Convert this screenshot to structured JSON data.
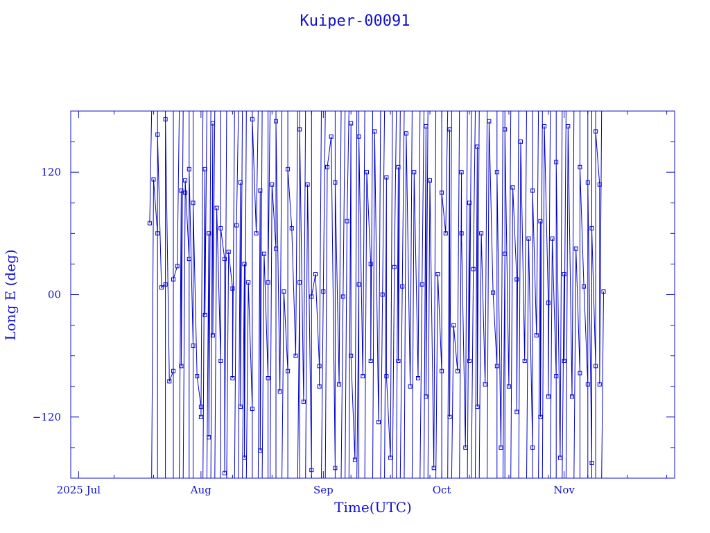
{
  "chart_data": {
    "type": "line",
    "title": "Kuiper-00091",
    "xlabel": "Time(UTC)",
    "ylabel": "Long E (deg)",
    "x_ticks": [
      {
        "label": "2025 Jul",
        "day": "2025-07-01"
      },
      {
        "label": "Aug",
        "day": "2025-08-01"
      },
      {
        "label": "Sep",
        "day": "2025-09-01"
      },
      {
        "label": "Oct",
        "day": "2025-10-01"
      },
      {
        "label": "Nov",
        "day": "2025-11-01"
      }
    ],
    "y_ticks": [
      {
        "label": "120",
        "value": 120
      },
      {
        "label": "00",
        "value": 0
      },
      {
        "label": "−120",
        "value": -120
      }
    ],
    "xlim": [
      "2025-06-29",
      "2025-11-29"
    ],
    "ylim": [
      -180,
      180
    ],
    "grid": false,
    "series": [
      {
        "marker": "square",
        "color": "#0000cc",
        "points": [
          {
            "x": "2025-07-19",
            "y": 70
          },
          {
            "x": "2025-07-20",
            "y": 113
          },
          {
            "x": "2025-07-21",
            "y": 60
          },
          {
            "x": "2025-07-21",
            "y": 157
          },
          {
            "x": "2025-07-22",
            "y": 7
          },
          {
            "x": "2025-07-23",
            "y": 10
          },
          {
            "x": "2025-07-23",
            "y": 172
          },
          {
            "x": "2025-07-24",
            "y": -85
          },
          {
            "x": "2025-07-25",
            "y": -75
          },
          {
            "x": "2025-07-25",
            "y": 15
          },
          {
            "x": "2025-07-26",
            "y": 28
          },
          {
            "x": "2025-07-27",
            "y": 102
          },
          {
            "x": "2025-07-27",
            "y": -70
          },
          {
            "x": "2025-07-28",
            "y": 100
          },
          {
            "x": "2025-07-28",
            "y": 112
          },
          {
            "x": "2025-07-29",
            "y": 35
          },
          {
            "x": "2025-07-29",
            "y": 123
          },
          {
            "x": "2025-07-30",
            "y": -50
          },
          {
            "x": "2025-07-30",
            "y": 90
          },
          {
            "x": "2025-07-31",
            "y": -80
          },
          {
            "x": "2025-08-01",
            "y": -110
          },
          {
            "x": "2025-08-01",
            "y": -120
          },
          {
            "x": "2025-08-02",
            "y": 123
          },
          {
            "x": "2025-08-02",
            "y": -20
          },
          {
            "x": "2025-08-03",
            "y": 60
          },
          {
            "x": "2025-08-03",
            "y": -140
          },
          {
            "x": "2025-08-04",
            "y": 168
          },
          {
            "x": "2025-08-04",
            "y": -40
          },
          {
            "x": "2025-08-05",
            "y": 85
          },
          {
            "x": "2025-08-06",
            "y": -65
          },
          {
            "x": "2025-08-06",
            "y": 65
          },
          {
            "x": "2025-08-07",
            "y": 35
          },
          {
            "x": "2025-08-07",
            "y": -175
          },
          {
            "x": "2025-08-08",
            "y": 42
          },
          {
            "x": "2025-08-09",
            "y": 6
          },
          {
            "x": "2025-08-09",
            "y": -82
          },
          {
            "x": "2025-08-10",
            "y": 68
          },
          {
            "x": "2025-08-11",
            "y": 110
          },
          {
            "x": "2025-08-11",
            "y": -110
          },
          {
            "x": "2025-08-12",
            "y": 30
          },
          {
            "x": "2025-08-12",
            "y": -160
          },
          {
            "x": "2025-08-13",
            "y": 12
          },
          {
            "x": "2025-08-14",
            "y": -112
          },
          {
            "x": "2025-08-14",
            "y": 172
          },
          {
            "x": "2025-08-15",
            "y": 60
          },
          {
            "x": "2025-08-16",
            "y": 102
          },
          {
            "x": "2025-08-16",
            "y": -153
          },
          {
            "x": "2025-08-17",
            "y": 40
          },
          {
            "x": "2025-08-18",
            "y": -82
          },
          {
            "x": "2025-08-18",
            "y": 12
          },
          {
            "x": "2025-08-19",
            "y": 108
          },
          {
            "x": "2025-08-20",
            "y": 45
          },
          {
            "x": "2025-08-20",
            "y": 170
          },
          {
            "x": "2025-08-21",
            "y": -95
          },
          {
            "x": "2025-08-22",
            "y": 3
          },
          {
            "x": "2025-08-23",
            "y": -75
          },
          {
            "x": "2025-08-23",
            "y": 123
          },
          {
            "x": "2025-08-24",
            "y": 65
          },
          {
            "x": "2025-08-25",
            "y": -60
          },
          {
            "x": "2025-08-26",
            "y": 12
          },
          {
            "x": "2025-08-26",
            "y": 162
          },
          {
            "x": "2025-08-27",
            "y": -105
          },
          {
            "x": "2025-08-28",
            "y": 108
          },
          {
            "x": "2025-08-29",
            "y": -172
          },
          {
            "x": "2025-08-29",
            "y": -2
          },
          {
            "x": "2025-08-30",
            "y": 20
          },
          {
            "x": "2025-08-31",
            "y": -70
          },
          {
            "x": "2025-08-31",
            "y": -90
          },
          {
            "x": "2025-09-01",
            "y": 3
          },
          {
            "x": "2025-09-02",
            "y": 125
          },
          {
            "x": "2025-09-03",
            "y": 155
          },
          {
            "x": "2025-09-04",
            "y": -170
          },
          {
            "x": "2025-09-04",
            "y": 110
          },
          {
            "x": "2025-09-05",
            "y": -88
          },
          {
            "x": "2025-09-06",
            "y": -2
          },
          {
            "x": "2025-09-07",
            "y": 72
          },
          {
            "x": "2025-09-08",
            "y": 168
          },
          {
            "x": "2025-09-08",
            "y": -60
          },
          {
            "x": "2025-09-09",
            "y": -162
          },
          {
            "x": "2025-09-10",
            "y": 10
          },
          {
            "x": "2025-09-10",
            "y": 155
          },
          {
            "x": "2025-09-11",
            "y": -80
          },
          {
            "x": "2025-09-12",
            "y": 120
          },
          {
            "x": "2025-09-13",
            "y": 30
          },
          {
            "x": "2025-09-13",
            "y": -65
          },
          {
            "x": "2025-09-14",
            "y": 160
          },
          {
            "x": "2025-09-15",
            "y": -125
          },
          {
            "x": "2025-09-16",
            "y": 0
          },
          {
            "x": "2025-09-17",
            "y": 115
          },
          {
            "x": "2025-09-17",
            "y": -80
          },
          {
            "x": "2025-09-18",
            "y": -160
          },
          {
            "x": "2025-09-19",
            "y": 27
          },
          {
            "x": "2025-09-20",
            "y": 125
          },
          {
            "x": "2025-09-20",
            "y": -65
          },
          {
            "x": "2025-09-21",
            "y": 8
          },
          {
            "x": "2025-09-22",
            "y": 158
          },
          {
            "x": "2025-09-23",
            "y": -90
          },
          {
            "x": "2025-09-24",
            "y": 120
          },
          {
            "x": "2025-09-25",
            "y": -82
          },
          {
            "x": "2025-09-26",
            "y": 10
          },
          {
            "x": "2025-09-27",
            "y": 165
          },
          {
            "x": "2025-09-27",
            "y": -100
          },
          {
            "x": "2025-09-28",
            "y": 112
          },
          {
            "x": "2025-09-29",
            "y": -170
          },
          {
            "x": "2025-09-30",
            "y": 20
          },
          {
            "x": "2025-10-01",
            "y": -75
          },
          {
            "x": "2025-10-01",
            "y": 100
          },
          {
            "x": "2025-10-02",
            "y": 60
          },
          {
            "x": "2025-10-03",
            "y": 162
          },
          {
            "x": "2025-10-03",
            "y": -120
          },
          {
            "x": "2025-10-04",
            "y": -30
          },
          {
            "x": "2025-10-05",
            "y": -75
          },
          {
            "x": "2025-10-06",
            "y": 120
          },
          {
            "x": "2025-10-06",
            "y": 60
          },
          {
            "x": "2025-10-07",
            "y": -150
          },
          {
            "x": "2025-10-08",
            "y": 90
          },
          {
            "x": "2025-10-08",
            "y": -65
          },
          {
            "x": "2025-10-09",
            "y": 25
          },
          {
            "x": "2025-10-10",
            "y": 145
          },
          {
            "x": "2025-10-10",
            "y": -110
          },
          {
            "x": "2025-10-11",
            "y": 60
          },
          {
            "x": "2025-10-12",
            "y": -88
          },
          {
            "x": "2025-10-13",
            "y": 170
          },
          {
            "x": "2025-10-14",
            "y": 2
          },
          {
            "x": "2025-10-15",
            "y": -70
          },
          {
            "x": "2025-10-15",
            "y": 120
          },
          {
            "x": "2025-10-16",
            "y": -150
          },
          {
            "x": "2025-10-17",
            "y": 40
          },
          {
            "x": "2025-10-17",
            "y": 162
          },
          {
            "x": "2025-10-18",
            "y": -90
          },
          {
            "x": "2025-10-19",
            "y": 105
          },
          {
            "x": "2025-10-20",
            "y": 15
          },
          {
            "x": "2025-10-20",
            "y": -115
          },
          {
            "x": "2025-10-21",
            "y": 150
          },
          {
            "x": "2025-10-22",
            "y": -65
          },
          {
            "x": "2025-10-23",
            "y": 55
          },
          {
            "x": "2025-10-24",
            "y": -150
          },
          {
            "x": "2025-10-24",
            "y": 102
          },
          {
            "x": "2025-10-25",
            "y": -40
          },
          {
            "x": "2025-10-26",
            "y": 72
          },
          {
            "x": "2025-10-26",
            "y": -120
          },
          {
            "x": "2025-10-27",
            "y": 165
          },
          {
            "x": "2025-10-28",
            "y": -8
          },
          {
            "x": "2025-10-28",
            "y": -100
          },
          {
            "x": "2025-10-29",
            "y": 55
          },
          {
            "x": "2025-10-30",
            "y": -80
          },
          {
            "x": "2025-10-30",
            "y": 130
          },
          {
            "x": "2025-10-31",
            "y": -160
          },
          {
            "x": "2025-11-01",
            "y": 20
          },
          {
            "x": "2025-11-01",
            "y": -65
          },
          {
            "x": "2025-11-02",
            "y": 165
          },
          {
            "x": "2025-11-03",
            "y": -100
          },
          {
            "x": "2025-11-04",
            "y": 45
          },
          {
            "x": "2025-11-05",
            "y": -77
          },
          {
            "x": "2025-11-05",
            "y": 125
          },
          {
            "x": "2025-11-06",
            "y": 8
          },
          {
            "x": "2025-11-07",
            "y": -88
          },
          {
            "x": "2025-11-07",
            "y": 110
          },
          {
            "x": "2025-11-08",
            "y": -165
          },
          {
            "x": "2025-11-08",
            "y": 65
          },
          {
            "x": "2025-11-09",
            "y": -70
          },
          {
            "x": "2025-11-09",
            "y": 160
          },
          {
            "x": "2025-11-10",
            "y": 108
          },
          {
            "x": "2025-11-10",
            "y": -88
          },
          {
            "x": "2025-11-11",
            "y": 3
          }
        ]
      }
    ]
  }
}
